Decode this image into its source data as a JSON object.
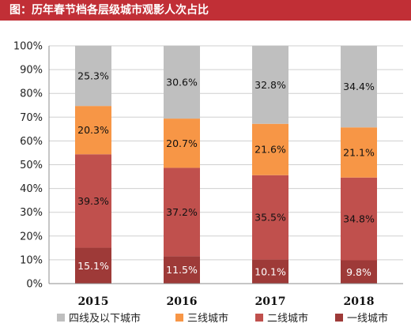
{
  "title": "图：历年春节档各层级城市观影人次占比",
  "chart_data": {
    "type": "bar",
    "stacked": true,
    "categories": [
      "2015",
      "2016",
      "2017",
      "2018"
    ],
    "series": [
      {
        "name": "一线城市",
        "values": [
          15.1,
          11.5,
          10.1,
          9.8
        ],
        "labels": [
          "15.1%",
          "11.5%",
          "10.1%",
          "9.8%"
        ],
        "color": "#9e3a38",
        "label_color": "#ffffff"
      },
      {
        "name": "二线城市",
        "values": [
          39.3,
          37.2,
          35.5,
          34.8
        ],
        "labels": [
          "39.3%",
          "37.2%",
          "35.5%",
          "34.8%"
        ],
        "color": "#c0504d",
        "label_color": "#111111"
      },
      {
        "name": "三线城市",
        "values": [
          20.3,
          20.7,
          21.6,
          21.1
        ],
        "labels": [
          "20.3%",
          "20.7%",
          "21.6%",
          "21.1%"
        ],
        "color": "#f79646",
        "label_color": "#111111"
      },
      {
        "name": "四线及以下城市",
        "values": [
          25.3,
          30.6,
          32.8,
          34.4
        ],
        "labels": [
          "25.3%",
          "30.6%",
          "32.8%",
          "34.4%"
        ],
        "color": "#bfbfbf",
        "label_color": "#111111"
      }
    ],
    "y_ticks": [
      "0%",
      "10%",
      "20%",
      "30%",
      "40%",
      "50%",
      "60%",
      "70%",
      "80%",
      "90%",
      "100%"
    ],
    "ylim": [
      0,
      100
    ],
    "legend_order": [
      "四线及以下城市",
      "三线城市",
      "二线城市",
      "一线城市"
    ],
    "legend_position": "bottom",
    "grid": true
  }
}
